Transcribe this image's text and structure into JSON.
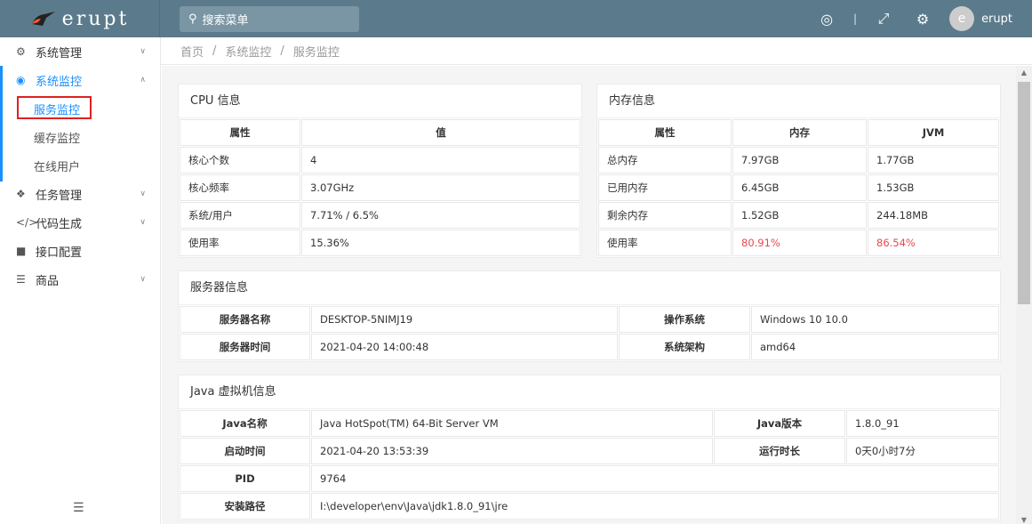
{
  "header": {
    "logo": "erupt",
    "search_placeholder": "搜索菜单",
    "user_initial": "e",
    "user_name": "erupt"
  },
  "sidebar": {
    "items": [
      {
        "label": "系统管理",
        "icon": "cogs-icon"
      },
      {
        "label": "系统监控",
        "icon": "target-icon",
        "children": [
          "服务监控",
          "缓存监控",
          "在线用户"
        ]
      },
      {
        "label": "任务管理",
        "icon": "cubes-icon"
      },
      {
        "label": "代码生成",
        "icon": "code-icon"
      },
      {
        "label": "接口配置",
        "icon": "cube-icon"
      },
      {
        "label": "商品",
        "icon": "list-icon"
      }
    ]
  },
  "breadcrumb": [
    "首页",
    "系统监控",
    "服务监控"
  ],
  "cpu": {
    "title": "CPU 信息",
    "headers": [
      "属性",
      "值"
    ],
    "rows": [
      [
        "核心个数",
        "4"
      ],
      [
        "核心频率",
        "3.07GHz"
      ],
      [
        "系统/用户",
        "7.71% / 6.5%"
      ],
      [
        "使用率",
        "15.36%"
      ]
    ]
  },
  "memory": {
    "title": "内存信息",
    "headers": [
      "属性",
      "内存",
      "JVM"
    ],
    "rows": [
      [
        "总内存",
        "7.97GB",
        "1.77GB"
      ],
      [
        "已用内存",
        "6.45GB",
        "1.53GB"
      ],
      [
        "剩余内存",
        "1.52GB",
        "244.18MB"
      ],
      [
        "使用率",
        "80.91%",
        "86.54%"
      ]
    ],
    "alert_color": "#e8484e"
  },
  "server": {
    "title": "服务器信息",
    "rows": [
      [
        "服务器名称",
        "DESKTOP-5NIMJ19",
        "操作系统",
        "Windows 10 10.0"
      ],
      [
        "服务器时间",
        "2021-04-20 14:00:48",
        "系统架构",
        "amd64"
      ]
    ]
  },
  "jvm": {
    "title": "Java 虚拟机信息",
    "rows": [
      [
        "Java名称",
        "Java HotSpot(TM) 64-Bit Server VM",
        "Java版本",
        "1.8.0_91"
      ],
      [
        "启动时间",
        "2021-04-20 13:53:39",
        "运行时长",
        "0天0小时7分"
      ]
    ],
    "pid_label": "PID",
    "pid": "9764",
    "path_label": "安装路径",
    "path": "I:\\developer\\env\\Java\\jdk1.8.0_91\\jre"
  }
}
